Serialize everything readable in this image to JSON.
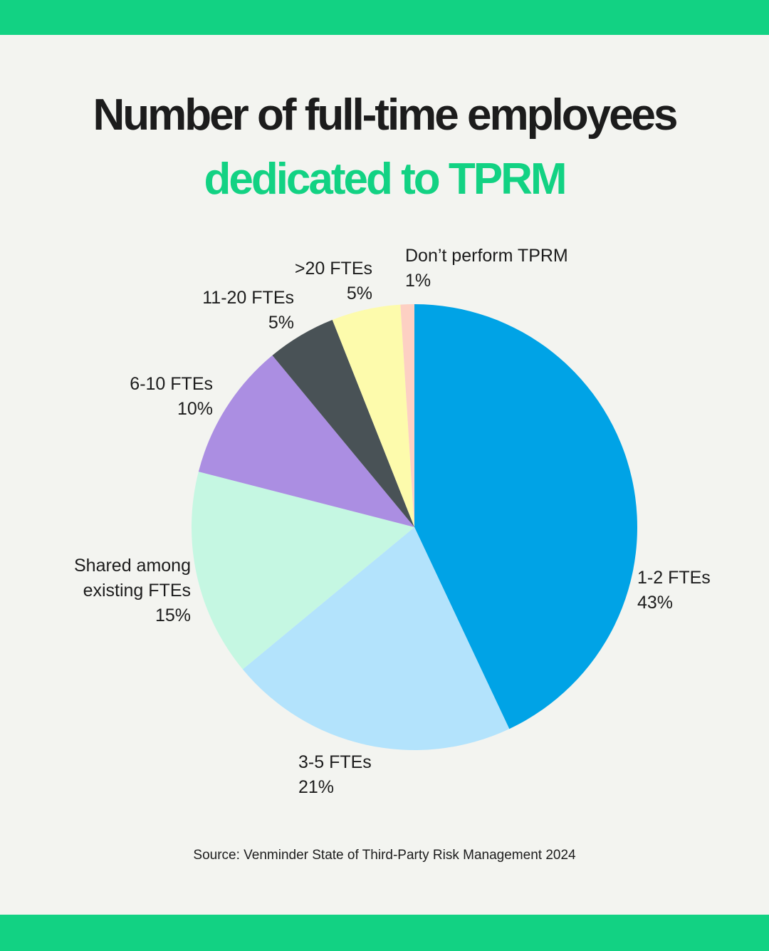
{
  "title_line1": "Number of full-time employees",
  "title_line2": "dedicated to TPRM",
  "source": "Source: Venminder State of Third-Party Risk Management 2024",
  "colors": {
    "band": "#12d283",
    "background": "#f3f4f0",
    "accent": "#12d283"
  },
  "chart_data": {
    "type": "pie",
    "title": "Number of full-time employees dedicated to TPRM",
    "slices": [
      {
        "label": "1-2 FTEs",
        "value": 43,
        "value_label": "43%",
        "color": "#00a3e6"
      },
      {
        "label": "3-5 FTEs",
        "value": 21,
        "value_label": "21%",
        "color": "#b3e3fc"
      },
      {
        "label": "Shared among existing FTEs",
        "label_lines": [
          "Shared among",
          "existing FTEs"
        ],
        "value": 15,
        "value_label": "15%",
        "color": "#c5f7e2"
      },
      {
        "label": "6-10 FTEs",
        "value": 10,
        "value_label": "10%",
        "color": "#ab8ee2"
      },
      {
        "label": "11-20 FTEs",
        "value": 5,
        "value_label": "5%",
        "color": "#495256"
      },
      {
        "label": ">20 FTEs",
        "value": 5,
        "value_label": "5%",
        "color": "#fdfbac"
      },
      {
        "label": "Don’t perform TPRM",
        "value": 1,
        "value_label": "1%",
        "color": "#fdd0c3"
      }
    ]
  }
}
